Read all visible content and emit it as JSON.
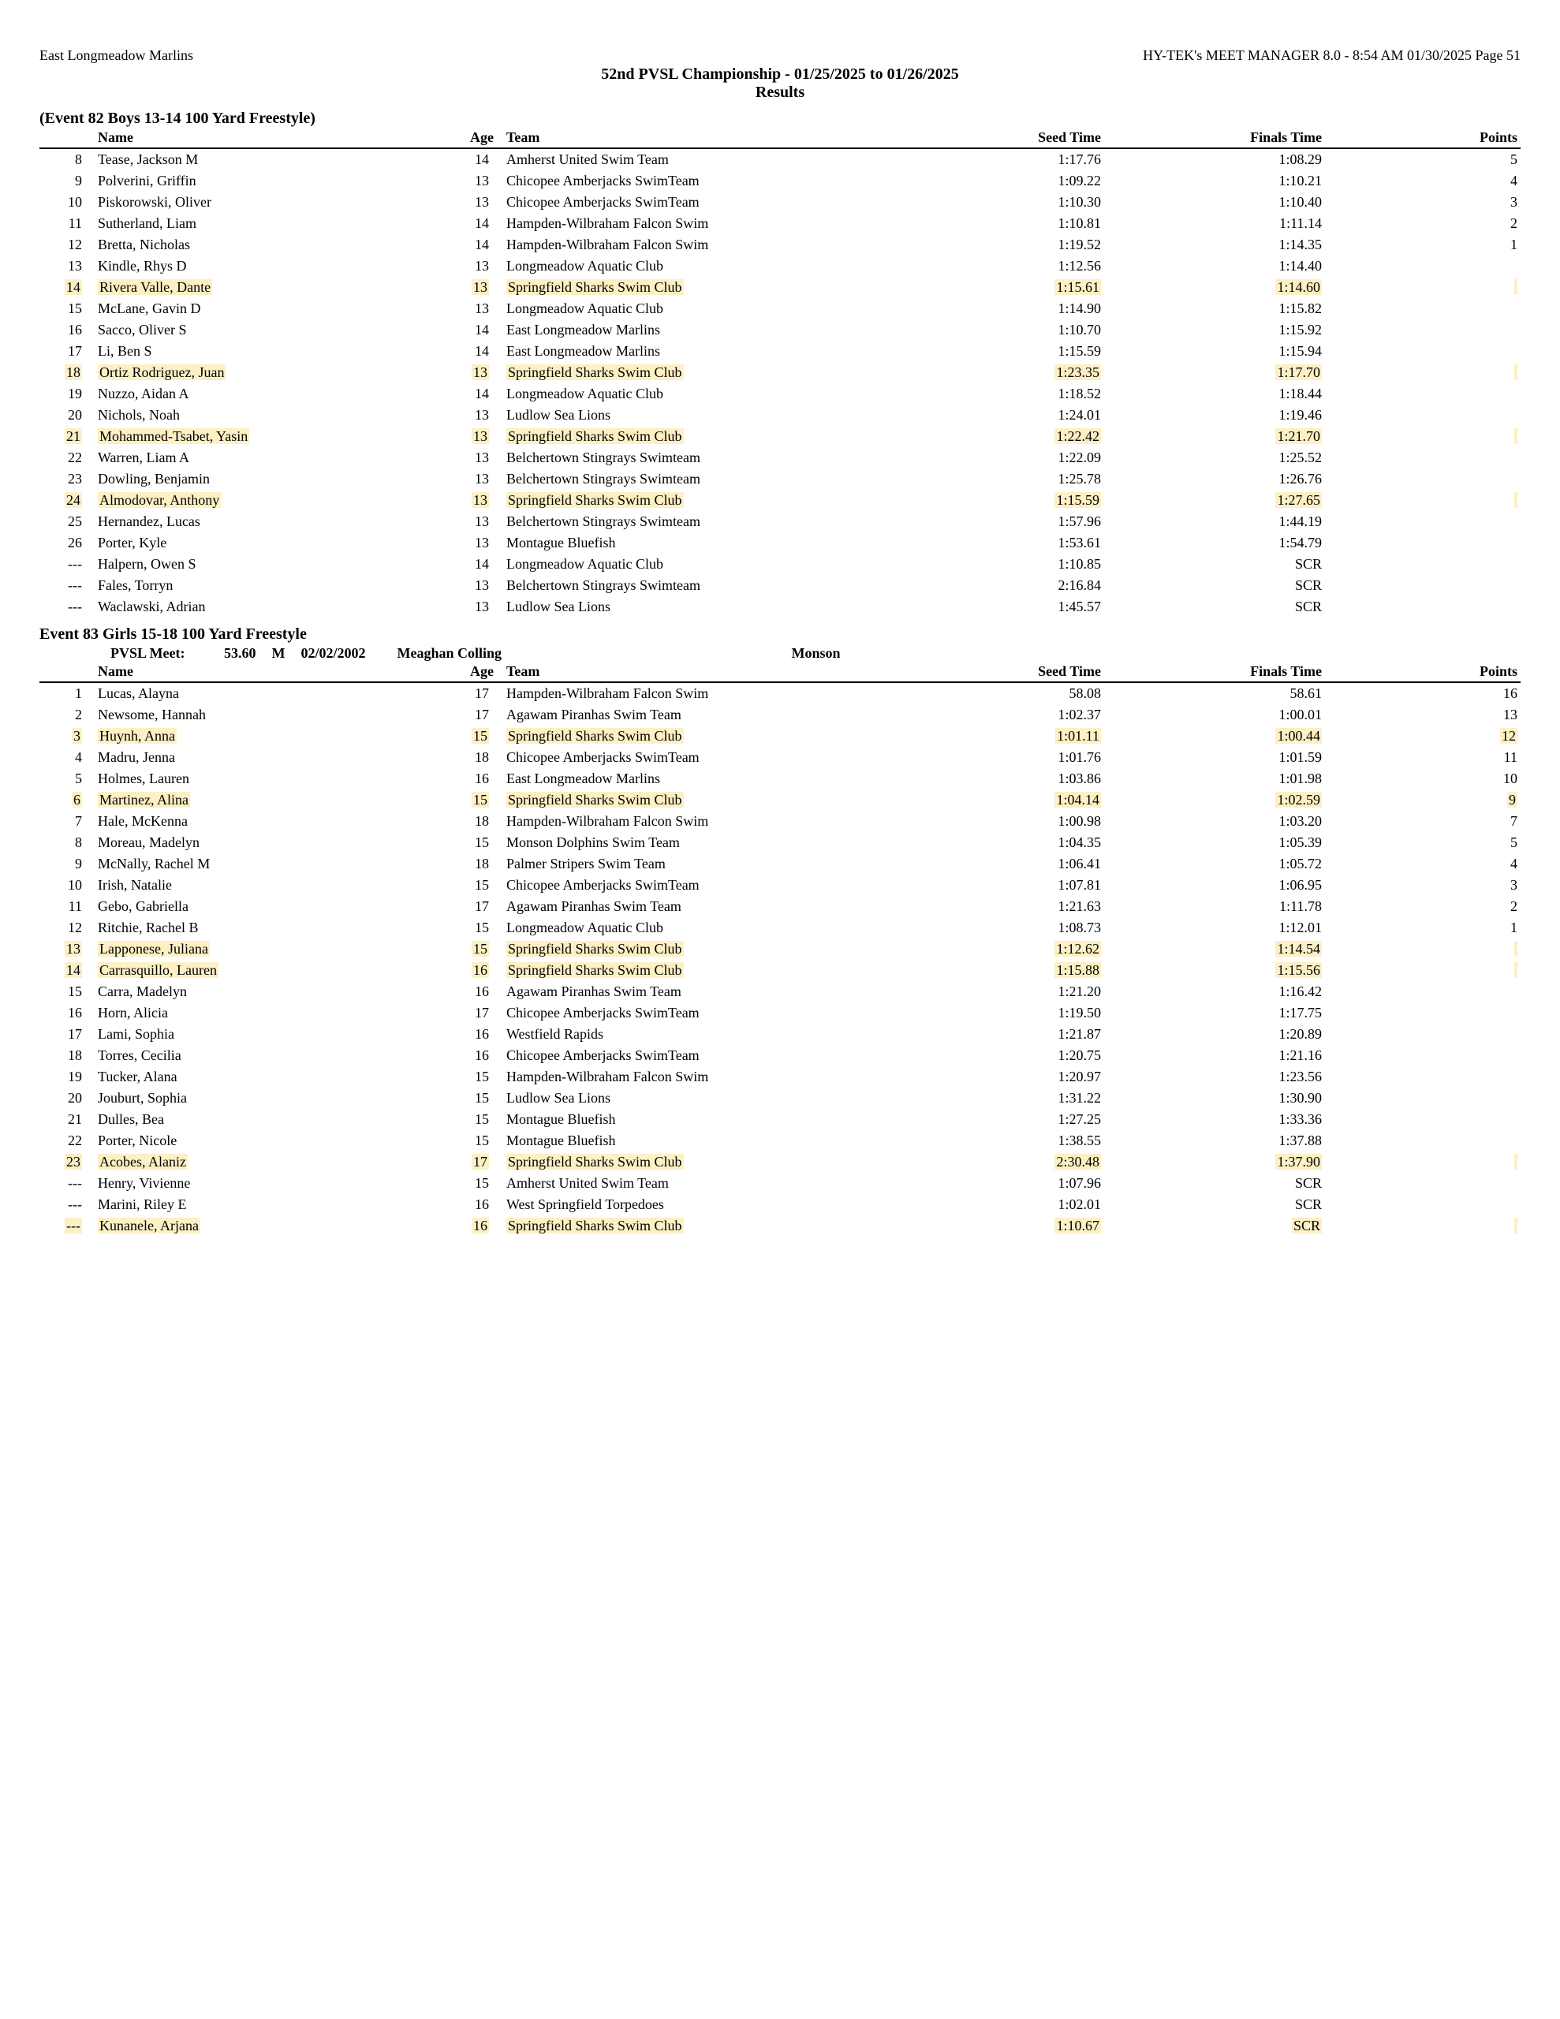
{
  "header": {
    "left": "East Longmeadow Marlins",
    "right": "HY-TEK's MEET MANAGER 8.0 - 8:54 AM  01/30/2025  Page 51",
    "meet_title": "52nd PVSL Championship - 01/25/2025 to 01/26/2025",
    "results_label": "Results"
  },
  "columns": {
    "name": "Name",
    "age": "Age",
    "team": "Team",
    "seed": "Seed Time",
    "finals": "Finals Time",
    "points": "Points"
  },
  "highlight_color": "#fdf0c4",
  "events": [
    {
      "title": "(Event 82  Boys 13-14 100 Yard Freestyle)",
      "rows": [
        {
          "place": "8",
          "name": "Tease, Jackson M",
          "age": "14",
          "team": "Amherst United Swim Team",
          "seed": "1:17.76",
          "finals": "1:08.29",
          "points": "5",
          "hl": false
        },
        {
          "place": "9",
          "name": "Polverini, Griffin",
          "age": "13",
          "team": "Chicopee Amberjacks SwimTeam",
          "seed": "1:09.22",
          "finals": "1:10.21",
          "points": "4",
          "hl": false
        },
        {
          "place": "10",
          "name": "Piskorowski, Oliver",
          "age": "13",
          "team": "Chicopee Amberjacks SwimTeam",
          "seed": "1:10.30",
          "finals": "1:10.40",
          "points": "3",
          "hl": false
        },
        {
          "place": "11",
          "name": "Sutherland, Liam",
          "age": "14",
          "team": "Hampden-Wilbraham Falcon Swim",
          "seed": "1:10.81",
          "finals": "1:11.14",
          "points": "2",
          "hl": false
        },
        {
          "place": "12",
          "name": "Bretta, Nicholas",
          "age": "14",
          "team": "Hampden-Wilbraham Falcon Swim",
          "seed": "1:19.52",
          "finals": "1:14.35",
          "points": "1",
          "hl": false
        },
        {
          "place": "13",
          "name": "Kindle, Rhys D",
          "age": "13",
          "team": "Longmeadow Aquatic Club",
          "seed": "1:12.56",
          "finals": "1:14.40",
          "points": "",
          "hl": false
        },
        {
          "place": "14",
          "name": "Rivera Valle, Dante",
          "age": "13",
          "team": "Springfield Sharks Swim Club",
          "seed": "1:15.61",
          "finals": "1:14.60",
          "points": "",
          "hl": true
        },
        {
          "place": "15",
          "name": "McLane, Gavin D",
          "age": "13",
          "team": "Longmeadow Aquatic Club",
          "seed": "1:14.90",
          "finals": "1:15.82",
          "points": "",
          "hl": false
        },
        {
          "place": "16",
          "name": "Sacco, Oliver S",
          "age": "14",
          "team": "East Longmeadow Marlins",
          "seed": "1:10.70",
          "finals": "1:15.92",
          "points": "",
          "hl": false
        },
        {
          "place": "17",
          "name": "Li, Ben S",
          "age": "14",
          "team": "East Longmeadow Marlins",
          "seed": "1:15.59",
          "finals": "1:15.94",
          "points": "",
          "hl": false
        },
        {
          "place": "18",
          "name": "Ortiz Rodriguez, Juan",
          "age": "13",
          "team": "Springfield Sharks Swim Club",
          "seed": "1:23.35",
          "finals": "1:17.70",
          "points": "",
          "hl": true
        },
        {
          "place": "19",
          "name": "Nuzzo, Aidan A",
          "age": "14",
          "team": "Longmeadow Aquatic Club",
          "seed": "1:18.52",
          "finals": "1:18.44",
          "points": "",
          "hl": false
        },
        {
          "place": "20",
          "name": "Nichols, Noah",
          "age": "13",
          "team": "Ludlow Sea Lions",
          "seed": "1:24.01",
          "finals": "1:19.46",
          "points": "",
          "hl": false
        },
        {
          "place": "21",
          "name": "Mohammed-Tsabet, Yasin",
          "age": "13",
          "team": "Springfield Sharks Swim Club",
          "seed": "1:22.42",
          "finals": "1:21.70",
          "points": "",
          "hl": true
        },
        {
          "place": "22",
          "name": "Warren, Liam A",
          "age": "13",
          "team": "Belchertown Stingrays Swimteam",
          "seed": "1:22.09",
          "finals": "1:25.52",
          "points": "",
          "hl": false
        },
        {
          "place": "23",
          "name": "Dowling, Benjamin",
          "age": "13",
          "team": "Belchertown Stingrays Swimteam",
          "seed": "1:25.78",
          "finals": "1:26.76",
          "points": "",
          "hl": false
        },
        {
          "place": "24",
          "name": "Almodovar, Anthony",
          "age": "13",
          "team": "Springfield Sharks Swim Club",
          "seed": "1:15.59",
          "finals": "1:27.65",
          "points": "",
          "hl": true
        },
        {
          "place": "25",
          "name": "Hernandez, Lucas",
          "age": "13",
          "team": "Belchertown Stingrays Swimteam",
          "seed": "1:57.96",
          "finals": "1:44.19",
          "points": "",
          "hl": false
        },
        {
          "place": "26",
          "name": "Porter, Kyle",
          "age": "13",
          "team": "Montague Bluefish",
          "seed": "1:53.61",
          "finals": "1:54.79",
          "points": "",
          "hl": false
        },
        {
          "place": "---",
          "name": "Halpern, Owen S",
          "age": "14",
          "team": "Longmeadow Aquatic Club",
          "seed": "1:10.85",
          "finals": "SCR",
          "points": "",
          "hl": false
        },
        {
          "place": "---",
          "name": "Fales, Torryn",
          "age": "13",
          "team": "Belchertown Stingrays Swimteam",
          "seed": "2:16.84",
          "finals": "SCR",
          "points": "",
          "hl": false
        },
        {
          "place": "---",
          "name": "Waclawski, Adrian",
          "age": "13",
          "team": "Ludlow Sea Lions",
          "seed": "1:45.57",
          "finals": "SCR",
          "points": "",
          "hl": false
        }
      ]
    },
    {
      "title": "Event 83  Girls 15-18 100 Yard Freestyle",
      "record": {
        "label": "PVSL Meet:",
        "time": "53.60",
        "mark": "M",
        "date": "02/02/2002",
        "holder": "Meaghan Colling",
        "affil": "Monson"
      },
      "rows": [
        {
          "place": "1",
          "name": "Lucas, Alayna",
          "age": "17",
          "team": "Hampden-Wilbraham Falcon Swim",
          "seed": "58.08",
          "finals": "58.61",
          "points": "16",
          "hl": false
        },
        {
          "place": "2",
          "name": "Newsome, Hannah",
          "age": "17",
          "team": "Agawam Piranhas Swim Team",
          "seed": "1:02.37",
          "finals": "1:00.01",
          "points": "13",
          "hl": false
        },
        {
          "place": "3",
          "name": "Huynh, Anna",
          "age": "15",
          "team": "Springfield Sharks Swim Club",
          "seed": "1:01.11",
          "finals": "1:00.44",
          "points": "12",
          "hl": true
        },
        {
          "place": "4",
          "name": "Madru, Jenna",
          "age": "18",
          "team": "Chicopee Amberjacks SwimTeam",
          "seed": "1:01.76",
          "finals": "1:01.59",
          "points": "11",
          "hl": false
        },
        {
          "place": "5",
          "name": "Holmes, Lauren",
          "age": "16",
          "team": "East Longmeadow Marlins",
          "seed": "1:03.86",
          "finals": "1:01.98",
          "points": "10",
          "hl": false
        },
        {
          "place": "6",
          "name": "Martinez, Alina",
          "age": "15",
          "team": "Springfield Sharks Swim Club",
          "seed": "1:04.14",
          "finals": "1:02.59",
          "points": "9",
          "hl": true
        },
        {
          "place": "7",
          "name": "Hale, McKenna",
          "age": "18",
          "team": "Hampden-Wilbraham Falcon Swim",
          "seed": "1:00.98",
          "finals": "1:03.20",
          "points": "7",
          "hl": false
        },
        {
          "place": "8",
          "name": "Moreau, Madelyn",
          "age": "15",
          "team": "Monson Dolphins Swim Team",
          "seed": "1:04.35",
          "finals": "1:05.39",
          "points": "5",
          "hl": false
        },
        {
          "place": "9",
          "name": "McNally, Rachel M",
          "age": "18",
          "team": "Palmer Stripers Swim Team",
          "seed": "1:06.41",
          "finals": "1:05.72",
          "points": "4",
          "hl": false
        },
        {
          "place": "10",
          "name": "Irish, Natalie",
          "age": "15",
          "team": "Chicopee Amberjacks SwimTeam",
          "seed": "1:07.81",
          "finals": "1:06.95",
          "points": "3",
          "hl": false
        },
        {
          "place": "11",
          "name": "Gebo, Gabriella",
          "age": "17",
          "team": "Agawam Piranhas Swim Team",
          "seed": "1:21.63",
          "finals": "1:11.78",
          "points": "2",
          "hl": false
        },
        {
          "place": "12",
          "name": "Ritchie, Rachel B",
          "age": "15",
          "team": "Longmeadow Aquatic Club",
          "seed": "1:08.73",
          "finals": "1:12.01",
          "points": "1",
          "hl": false
        },
        {
          "place": "13",
          "name": "Lapponese, Juliana",
          "age": "15",
          "team": "Springfield Sharks Swim Club",
          "seed": "1:12.62",
          "finals": "1:14.54",
          "points": "",
          "hl": true
        },
        {
          "place": "14",
          "name": "Carrasquillo, Lauren",
          "age": "16",
          "team": "Springfield Sharks Swim Club",
          "seed": "1:15.88",
          "finals": "1:15.56",
          "points": "",
          "hl": true
        },
        {
          "place": "15",
          "name": "Carra, Madelyn",
          "age": "16",
          "team": "Agawam Piranhas Swim Team",
          "seed": "1:21.20",
          "finals": "1:16.42",
          "points": "",
          "hl": false
        },
        {
          "place": "16",
          "name": "Horn, Alicia",
          "age": "17",
          "team": "Chicopee Amberjacks SwimTeam",
          "seed": "1:19.50",
          "finals": "1:17.75",
          "points": "",
          "hl": false
        },
        {
          "place": "17",
          "name": "Lami, Sophia",
          "age": "16",
          "team": "Westfield Rapids",
          "seed": "1:21.87",
          "finals": "1:20.89",
          "points": "",
          "hl": false
        },
        {
          "place": "18",
          "name": "Torres, Cecilia",
          "age": "16",
          "team": "Chicopee Amberjacks SwimTeam",
          "seed": "1:20.75",
          "finals": "1:21.16",
          "points": "",
          "hl": false
        },
        {
          "place": "19",
          "name": "Tucker, Alana",
          "age": "15",
          "team": "Hampden-Wilbraham Falcon Swim",
          "seed": "1:20.97",
          "finals": "1:23.56",
          "points": "",
          "hl": false
        },
        {
          "place": "20",
          "name": "Jouburt, Sophia",
          "age": "15",
          "team": "Ludlow Sea Lions",
          "seed": "1:31.22",
          "finals": "1:30.90",
          "points": "",
          "hl": false
        },
        {
          "place": "21",
          "name": "Dulles, Bea",
          "age": "15",
          "team": "Montague Bluefish",
          "seed": "1:27.25",
          "finals": "1:33.36",
          "points": "",
          "hl": false
        },
        {
          "place": "22",
          "name": "Porter, Nicole",
          "age": "15",
          "team": "Montague Bluefish",
          "seed": "1:38.55",
          "finals": "1:37.88",
          "points": "",
          "hl": false
        },
        {
          "place": "23",
          "name": "Acobes, Alaniz",
          "age": "17",
          "team": "Springfield Sharks Swim Club",
          "seed": "2:30.48",
          "finals": "1:37.90",
          "points": "",
          "hl": true
        },
        {
          "place": "---",
          "name": "Henry, Vivienne",
          "age": "15",
          "team": "Amherst United Swim Team",
          "seed": "1:07.96",
          "finals": "SCR",
          "points": "",
          "hl": false
        },
        {
          "place": "---",
          "name": "Marini, Riley E",
          "age": "16",
          "team": "West Springfield Torpedoes",
          "seed": "1:02.01",
          "finals": "SCR",
          "points": "",
          "hl": false
        },
        {
          "place": "---",
          "name": "Kunanele, Arjana",
          "age": "16",
          "team": "Springfield Sharks Swim Club",
          "seed": "1:10.67",
          "finals": "SCR",
          "points": "",
          "hl": true
        }
      ]
    }
  ]
}
